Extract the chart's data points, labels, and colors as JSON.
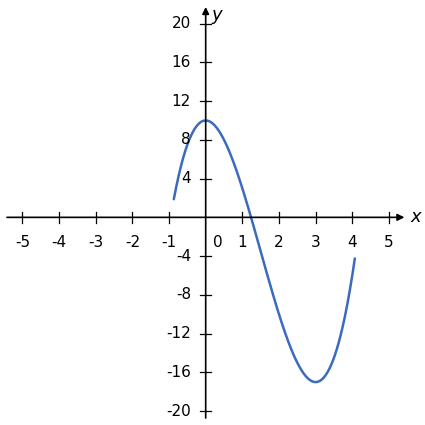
{
  "x_min_curve": -0.87,
  "x_max_curve": 4.07,
  "y_min": -21,
  "y_max": 22,
  "xlim": [
    -5.5,
    5.5
  ],
  "ylim": [
    -21,
    22
  ],
  "curve_color": "#3a6bbf",
  "curve_linewidth": 1.8,
  "background_color": "#ffffff",
  "x_ticks": [
    -5,
    -4,
    -3,
    -2,
    -1,
    1,
    2,
    3,
    4,
    5
  ],
  "y_ticks": [
    -20,
    -16,
    -12,
    -8,
    -4,
    4,
    8,
    12,
    16,
    20
  ],
  "tick_fontsize": 11,
  "xlabel": "x",
  "ylabel": "y",
  "axis_label_fontsize": 13,
  "coeff_a": 2.0,
  "coeff_b": -9.0,
  "coeff_c": 0.0,
  "coeff_d": 10.0
}
